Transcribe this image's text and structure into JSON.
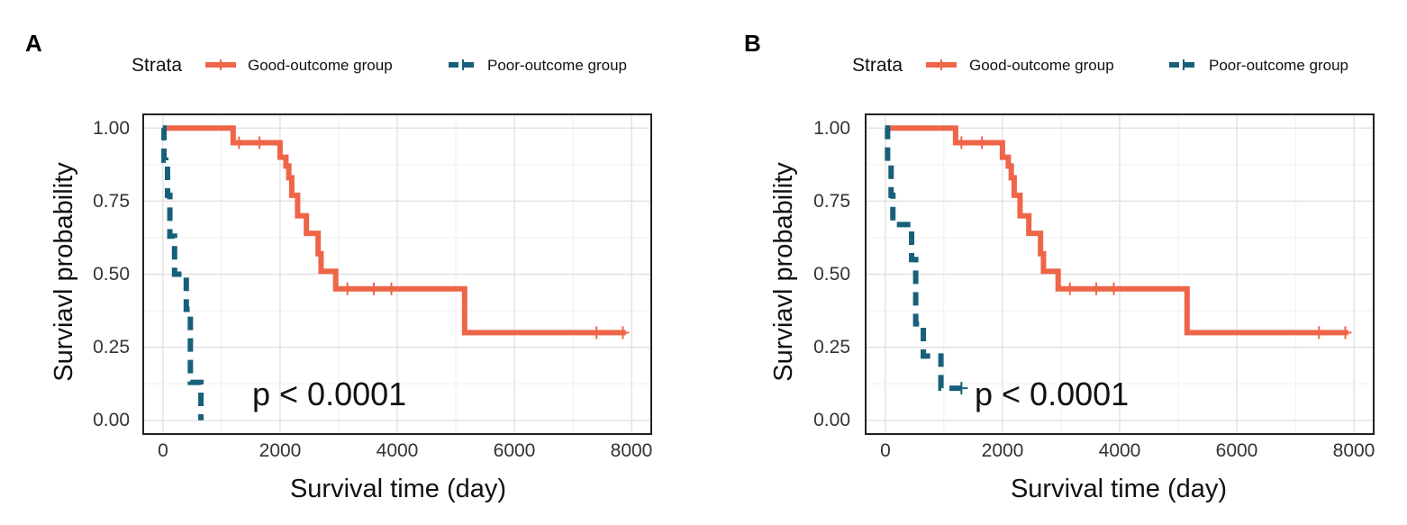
{
  "chart_data": [
    {
      "type": "line",
      "panel_label": "A",
      "legend_title": "Strata",
      "legend_position": "top",
      "xlabel": "Survival time (day)",
      "ylabel": "Surviavl probability",
      "xlim": [
        -350,
        8350
      ],
      "ylim": [
        -0.05,
        1.05
      ],
      "xticks": [
        0,
        2000,
        4000,
        6000,
        8000
      ],
      "xtick_labels": [
        "0",
        "2000",
        "4000",
        "6000",
        "8000"
      ],
      "yticks": [
        0,
        0.25,
        0.5,
        0.75,
        1.0
      ],
      "ytick_labels": [
        "0.00",
        "0.25",
        "0.50",
        "0.75",
        "1.00"
      ],
      "grid": true,
      "annotation": {
        "text": "p < 0.0001",
        "x": 1500,
        "y": 0.09
      },
      "series": [
        {
          "name": "Good-outcome group",
          "color": "#ef6548",
          "dash": false,
          "x": [
            0,
            1200,
            2000,
            2100,
            2150,
            2200,
            2300,
            2450,
            2650,
            2700,
            2950,
            5150,
            7900
          ],
          "y": [
            1.0,
            0.95,
            0.9,
            0.87,
            0.83,
            0.77,
            0.7,
            0.64,
            0.57,
            0.51,
            0.45,
            0.3,
            0.3
          ],
          "censor_x": [
            1300,
            1650,
            3150,
            3600,
            3900,
            7400,
            7850
          ],
          "censor_y": [
            0.95,
            0.95,
            0.45,
            0.45,
            0.45,
            0.3,
            0.3
          ]
        },
        {
          "name": "Poor-outcome group",
          "color": "#17607a",
          "dash": true,
          "x": [
            0,
            20,
            50,
            80,
            120,
            200,
            400,
            470,
            650
          ],
          "y": [
            1.0,
            0.89,
            0.87,
            0.77,
            0.63,
            0.5,
            0.38,
            0.13,
            0.0
          ],
          "censor_x": [],
          "censor_y": []
        }
      ]
    },
    {
      "type": "line",
      "panel_label": "B",
      "legend_title": "Strata",
      "legend_position": "top",
      "xlabel": "Survival time (day)",
      "ylabel": "Surviavl probability",
      "xlim": [
        -350,
        8350
      ],
      "ylim": [
        -0.05,
        1.05
      ],
      "xticks": [
        0,
        2000,
        4000,
        6000,
        8000
      ],
      "xtick_labels": [
        "0",
        "2000",
        "4000",
        "6000",
        "8000"
      ],
      "yticks": [
        0,
        0.25,
        0.5,
        0.75,
        1.0
      ],
      "ytick_labels": [
        "0.00",
        "0.25",
        "0.50",
        "0.75",
        "1.00"
      ],
      "grid": true,
      "annotation": {
        "text": "p < 0.0001",
        "x": 1500,
        "y": 0.09
      },
      "series": [
        {
          "name": "Good-outcome group",
          "color": "#ef6548",
          "dash": false,
          "x": [
            0,
            1200,
            2000,
            2100,
            2150,
            2200,
            2300,
            2450,
            2650,
            2700,
            2950,
            5150,
            7900
          ],
          "y": [
            1.0,
            0.95,
            0.9,
            0.87,
            0.83,
            0.77,
            0.7,
            0.64,
            0.57,
            0.51,
            0.45,
            0.3,
            0.3
          ],
          "censor_x": [
            1300,
            1650,
            3150,
            3600,
            3900,
            7400,
            7850
          ],
          "censor_y": [
            0.95,
            0.95,
            0.45,
            0.45,
            0.45,
            0.3,
            0.3
          ]
        },
        {
          "name": "Poor-outcome group",
          "color": "#17607a",
          "dash": true,
          "x": [
            0,
            40,
            100,
            130,
            450,
            520,
            650,
            950,
            1300
          ],
          "y": [
            1.0,
            0.88,
            0.77,
            0.67,
            0.55,
            0.33,
            0.22,
            0.11,
            0.11
          ],
          "censor_x": [
            1300
          ],
          "censor_y": [
            0.11
          ]
        }
      ]
    }
  ]
}
